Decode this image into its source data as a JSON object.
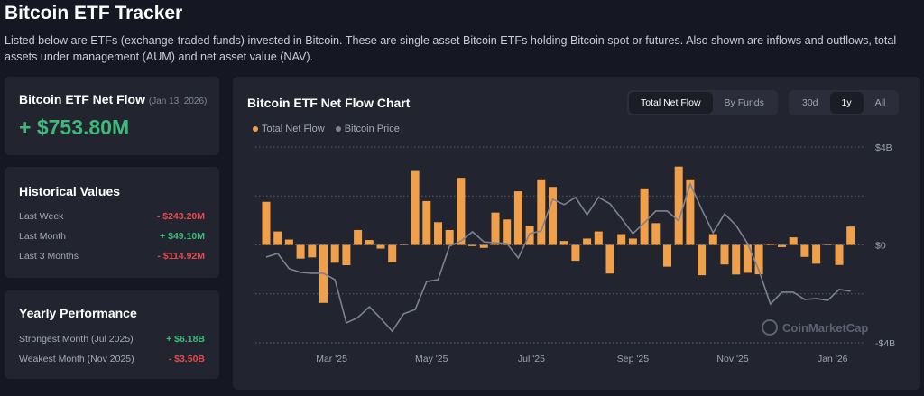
{
  "header": {
    "title": "Bitcoin ETF Tracker",
    "description": "Listed below are ETFs (exchange-traded funds) invested in Bitcoin. These are single asset Bitcoin ETFs holding Bitcoin spot or futures. Also shown are inflows and outflows, total assets under management (AUM) and net asset value (NAV)."
  },
  "net_flow": {
    "title": "Bitcoin ETF Net Flow",
    "date": "(Jan 13, 2026)",
    "value": "+ $753.80M"
  },
  "historical": {
    "title": "Historical Values",
    "rows": [
      {
        "label": "Last Week",
        "value": "- $243.20M",
        "sign": "neg"
      },
      {
        "label": "Last Month",
        "value": "+ $49.10M",
        "sign": "pos"
      },
      {
        "label": "Last 3 Months",
        "value": "- $114.92M",
        "sign": "neg"
      }
    ]
  },
  "yearly": {
    "title": "Yearly Performance",
    "rows": [
      {
        "label": "Strongest Month (Jul 2025)",
        "value": "+ $6.18B",
        "sign": "pos"
      },
      {
        "label": "Weakest Month (Nov 2025)",
        "value": "- $3.50B",
        "sign": "neg"
      }
    ]
  },
  "chart_panel": {
    "title": "Bitcoin ETF Net Flow Chart",
    "view_tabs": [
      "Total Net Flow",
      "By Funds"
    ],
    "active_view": "Total Net Flow",
    "range_tabs": [
      "30d",
      "1y",
      "All"
    ],
    "active_range": "1y",
    "watermark": "CoinMarketCap"
  },
  "colors": {
    "flow": "#f0a04b",
    "price": "#7d8191",
    "positive": "#3fb97a",
    "negative": "#e5484d"
  },
  "chart_data": {
    "type": "bar",
    "legend": [
      "Total Net Flow",
      "Bitcoin Price"
    ],
    "legend_placement": "top-left",
    "grid": true,
    "ylim": [
      -4,
      4
    ],
    "y_ticks": [
      "$4B",
      "$0",
      "-$4B"
    ],
    "y_tick_values": [
      4,
      0,
      -4
    ],
    "x_ticks": [
      {
        "label": "Mar '25",
        "date": "2025-03-01"
      },
      {
        "label": "May '25",
        "date": "2025-05-01"
      },
      {
        "label": "Jul '25",
        "date": "2025-07-01"
      },
      {
        "label": "Sep '25",
        "date": "2025-09-01"
      },
      {
        "label": "Nov '25",
        "date": "2025-11-01"
      },
      {
        "label": "Jan '26",
        "date": "2026-01-01"
      }
    ],
    "x": [
      "2025-01-20",
      "2025-01-27",
      "2025-02-03",
      "2025-02-10",
      "2025-02-17",
      "2025-02-24",
      "2025-03-03",
      "2025-03-10",
      "2025-03-17",
      "2025-03-24",
      "2025-03-31",
      "2025-04-07",
      "2025-04-14",
      "2025-04-21",
      "2025-04-28",
      "2025-05-05",
      "2025-05-12",
      "2025-05-19",
      "2025-05-26",
      "2025-06-02",
      "2025-06-09",
      "2025-06-16",
      "2025-06-23",
      "2025-06-30",
      "2025-07-07",
      "2025-07-14",
      "2025-07-21",
      "2025-07-28",
      "2025-08-04",
      "2025-08-11",
      "2025-08-18",
      "2025-08-25",
      "2025-09-01",
      "2025-09-08",
      "2025-09-15",
      "2025-09-22",
      "2025-09-29",
      "2025-10-06",
      "2025-10-13",
      "2025-10-20",
      "2025-10-27",
      "2025-11-03",
      "2025-11-10",
      "2025-11-17",
      "2025-11-24",
      "2025-12-01",
      "2025-12-08",
      "2025-12-15",
      "2025-12-22",
      "2025-12-29",
      "2026-01-05",
      "2026-01-12"
    ],
    "series": [
      {
        "name": "Total Net Flow",
        "unit": "B USD",
        "values": [
          1.76,
          0.55,
          0.22,
          -0.56,
          -0.51,
          -2.37,
          -0.73,
          -0.83,
          0.61,
          0.2,
          -0.15,
          -0.71,
          0,
          3.02,
          1.79,
          0.93,
          0.61,
          2.74,
          -0.05,
          -0.12,
          1.32,
          1.04,
          2.19,
          0.78,
          2.68,
          2.37,
          0.16,
          -0.65,
          0.26,
          0.55,
          -1.17,
          0.44,
          0.26,
          2.31,
          0.89,
          -0.89,
          3.2,
          2.68,
          -1.24,
          0.44,
          -0.8,
          -1.21,
          -1.14,
          -1.2,
          0.05,
          -0.09,
          0.31,
          -0.49,
          -0.77,
          0,
          -0.82,
          0.75
        ]
      },
      {
        "name": "Bitcoin Price",
        "unit": "K USD",
        "values": [
          100.3,
          101.5,
          96.5,
          95.3,
          95,
          95,
          92.9,
          78.7,
          80.5,
          84,
          80.2,
          76,
          81.7,
          83.1,
          92.3,
          92.9,
          103.9,
          105.6,
          108.6,
          105.3,
          105,
          104.8,
          100,
          108,
          108.9,
          119.3,
          117.5,
          119.9,
          114.2,
          119.9,
          117.8,
          113,
          108,
          111.6,
          115.4,
          115.4,
          112.2,
          124.3,
          116,
          108.3,
          114.5,
          110.7,
          104.8,
          95.9,
          84.9,
          88.8,
          88.8,
          86.4,
          86.7,
          86.1,
          89.7,
          89.1
        ]
      }
    ]
  }
}
